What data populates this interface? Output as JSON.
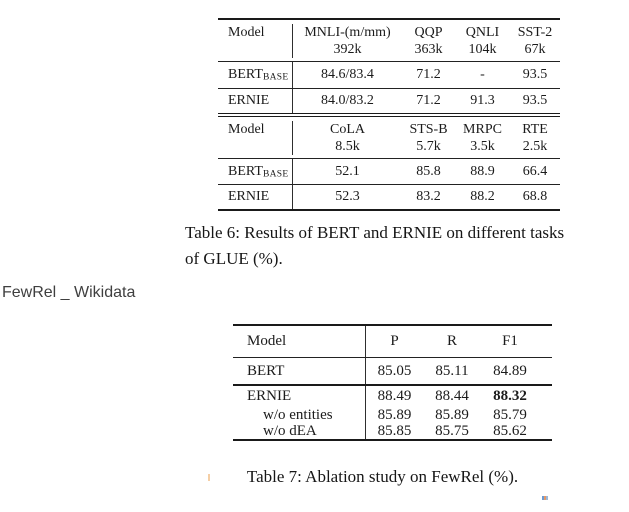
{
  "side_label": {
    "text": "FewRel _ Wikidata"
  },
  "table6": {
    "part1": {
      "header": {
        "model": "Model",
        "cols": [
          {
            "label": "MNLI-(m/mm)",
            "sub": "392k"
          },
          {
            "label": "QQP",
            "sub": "363k"
          },
          {
            "label": "QNLI",
            "sub": "104k"
          },
          {
            "label": "SST-2",
            "sub": "67k"
          }
        ]
      },
      "rows": [
        {
          "model": "BERT",
          "model_sub": "BASE",
          "cells": [
            "84.6/83.4",
            "71.2",
            "-",
            "93.5"
          ]
        },
        {
          "model": "ERNIE",
          "model_sub": "",
          "cells": [
            "84.0/83.2",
            "71.2",
            "91.3",
            "93.5"
          ]
        }
      ]
    },
    "part2": {
      "header": {
        "model": "Model",
        "cols": [
          {
            "label": "CoLA",
            "sub": "8.5k"
          },
          {
            "label": "STS-B",
            "sub": "5.7k"
          },
          {
            "label": "MRPC",
            "sub": "3.5k"
          },
          {
            "label": "RTE",
            "sub": "2.5k"
          }
        ]
      },
      "rows": [
        {
          "model": "BERT",
          "model_sub": "BASE",
          "cells": [
            "52.1",
            "85.8",
            "88.9",
            "66.4"
          ]
        },
        {
          "model": "ERNIE",
          "model_sub": "",
          "cells": [
            "52.3",
            "83.2",
            "88.2",
            "68.8"
          ]
        }
      ]
    },
    "caption_line1": "Table 6: Results of BERT and ERNIE on different tasks",
    "caption_line2": "of GLUE (%)."
  },
  "table7": {
    "header": {
      "model": "Model",
      "cols": [
        "P",
        "R",
        "F1"
      ]
    },
    "rows": [
      {
        "model": "BERT",
        "cells": [
          "85.05",
          "85.11",
          "84.89"
        ]
      },
      {
        "model": "ERNIE",
        "cells": [
          "88.49",
          "88.44",
          "88.32"
        ]
      },
      {
        "model": "w/o entities",
        "cells": [
          "85.89",
          "85.89",
          "85.79"
        ]
      },
      {
        "model": "w/o dEA",
        "cells": [
          "85.85",
          "85.75",
          "85.62"
        ]
      }
    ],
    "caption": "Table 7: Ablation study on FewRel (%)."
  }
}
